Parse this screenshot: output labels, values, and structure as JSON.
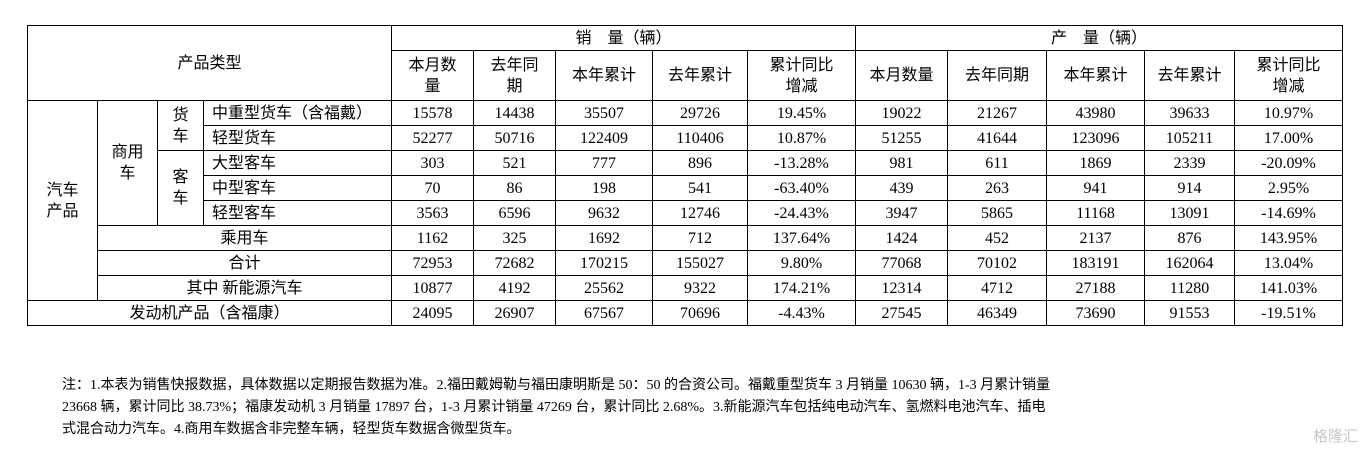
{
  "table": {
    "header": {
      "category": "产品类型",
      "sales": "销　量（辆）",
      "production": "产　量（辆）",
      "columns": [
        "本月数量",
        "去年同期",
        "本年累计",
        "去年累计",
        "累计同比增减",
        "本月数量",
        "去年同期",
        "本年累计",
        "去年累计",
        "累计同比增减"
      ]
    },
    "groups": {
      "auto": "汽车产品",
      "commercial": "商用车",
      "truck": "货车",
      "bus": "客车"
    },
    "rows": [
      {
        "label": "中重型货车（含福戴）",
        "values": [
          15578,
          14438,
          35507,
          29726,
          "19.45%",
          19022,
          21267,
          43980,
          39633,
          "10.97%"
        ]
      },
      {
        "label": "轻型货车",
        "values": [
          52277,
          50716,
          122409,
          110406,
          "10.87%",
          51255,
          41644,
          123096,
          105211,
          "17.00%"
        ]
      },
      {
        "label": "大型客车",
        "values": [
          303,
          521,
          777,
          896,
          "-13.28%",
          981,
          611,
          1869,
          2339,
          "-20.09%"
        ]
      },
      {
        "label": "中型客车",
        "values": [
          70,
          86,
          198,
          541,
          "-63.40%",
          439,
          263,
          941,
          914,
          "2.95%"
        ]
      },
      {
        "label": "轻型客车",
        "values": [
          3563,
          6596,
          9632,
          12746,
          "-24.43%",
          3947,
          5865,
          11168,
          13091,
          "-14.69%"
        ]
      },
      {
        "label": "乘用车",
        "values": [
          1162,
          325,
          1692,
          712,
          "137.64%",
          1424,
          452,
          2137,
          876,
          "143.95%"
        ]
      },
      {
        "label": "合计",
        "values": [
          72953,
          72682,
          170215,
          155027,
          "9.80%",
          77068,
          70102,
          183191,
          162064,
          "13.04%"
        ]
      },
      {
        "label": "其中 新能源汽车",
        "values": [
          10877,
          4192,
          25562,
          9322,
          "174.21%",
          12314,
          4712,
          27188,
          11280,
          "141.03%"
        ]
      },
      {
        "label": "发动机产品（含福康）",
        "values": [
          24095,
          26907,
          67567,
          70696,
          "-4.43%",
          27545,
          46349,
          73690,
          91553,
          "-19.51%"
        ]
      }
    ]
  },
  "note": {
    "lines": [
      "注：1.本表为销售快报数据，具体数据以定期报告数据为准。2.福田戴姆勒与福田康明斯是 50：50 的合资公司。福戴重型货车 3 月销量 10630 辆，1-3 月累计销量",
      "23668 辆，累计同比 38.73%；福康发动机 3 月销量 17897 台，1-3 月累计销量 47269 台，累计同比 2.68%。3.新能源汽车包括纯电动汽车、氢燃料电池汽车、插电",
      "式混合动力汽车。4.商用车数据含非完整车辆，轻型货车数据含微型货车。"
    ]
  },
  "watermark": "格隆汇"
}
